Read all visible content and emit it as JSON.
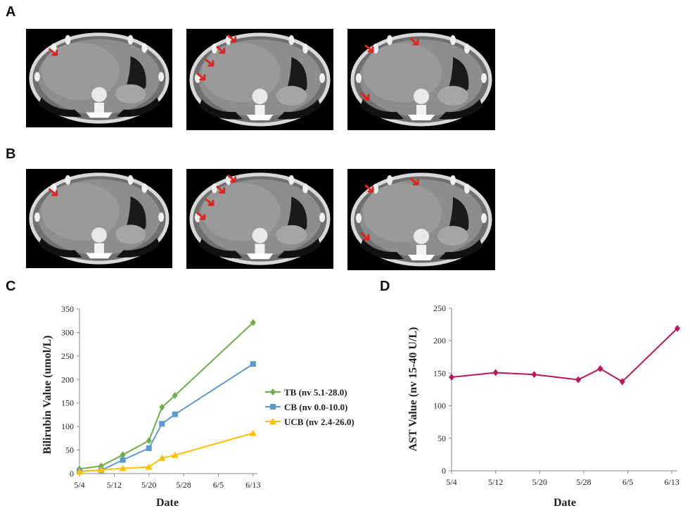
{
  "panels": {
    "a": "A",
    "b": "B",
    "c": "C",
    "d": "D"
  },
  "ct_images": {
    "row_a": [
      {
        "arrows": 1
      },
      {
        "arrows": 4
      },
      {
        "arrows": 3
      }
    ],
    "row_b": [
      {
        "arrows": 1
      },
      {
        "arrows": 4
      },
      {
        "arrows": 3
      }
    ],
    "arrow_color": "#e0241b"
  },
  "chart_data": [
    {
      "type": "line",
      "panel": "C",
      "ylabel": "Bilirubin Value (umol/L)",
      "xlabel": "Date",
      "ylim": [
        0,
        350
      ],
      "yticks": [
        0,
        50,
        100,
        150,
        200,
        250,
        300,
        350
      ],
      "xlim_days": [
        0,
        41
      ],
      "xticks": [
        {
          "label": "5/4",
          "day": 0
        },
        {
          "label": "5/12",
          "day": 8
        },
        {
          "label": "5/20",
          "day": 16
        },
        {
          "label": "5/28",
          "day": 24
        },
        {
          "label": "6/5",
          "day": 32
        },
        {
          "label": "6/13",
          "day": 40
        }
      ],
      "legend_position": "middle-right",
      "series": [
        {
          "name": "TB (nv 5.1-28.0)",
          "color": "#70ad47",
          "marker": "diamond",
          "days": [
            0,
            5,
            10,
            16,
            19,
            22,
            40
          ],
          "values": [
            10,
            16,
            40,
            70,
            141,
            166,
            321
          ]
        },
        {
          "name": "CB (nv 0.0-10.0)",
          "color": "#5b9bd5",
          "marker": "square",
          "days": [
            0,
            5,
            10,
            16,
            19,
            22,
            40
          ],
          "values": [
            5,
            7,
            29,
            54,
            106,
            126,
            233
          ]
        },
        {
          "name": "UCB (nv 2.4-26.0)",
          "color": "#ffc000",
          "marker": "triangle",
          "days": [
            0,
            5,
            10,
            16,
            19,
            22,
            40
          ],
          "values": [
            4,
            8,
            11,
            14,
            33,
            39,
            86
          ]
        }
      ]
    },
    {
      "type": "line",
      "panel": "D",
      "ylabel": "AST Value (nv 15-40 U/L)",
      "xlabel": "Date",
      "ylim": [
        0,
        250
      ],
      "yticks": [
        0,
        50,
        100,
        150,
        200,
        250
      ],
      "xlim_days": [
        0,
        41
      ],
      "xticks": [
        {
          "label": "5/4",
          "day": 0
        },
        {
          "label": "5/12",
          "day": 8
        },
        {
          "label": "5/20",
          "day": 16
        },
        {
          "label": "5/28",
          "day": 24
        },
        {
          "label": "6/5",
          "day": 32
        },
        {
          "label": "6/13",
          "day": 40
        }
      ],
      "series": [
        {
          "name": "AST",
          "color": "#c0145e",
          "marker": "diamond",
          "days": [
            0,
            8,
            15,
            23,
            27,
            31,
            41
          ],
          "values": [
            144,
            151,
            148,
            140,
            157,
            137,
            219
          ]
        }
      ]
    }
  ]
}
